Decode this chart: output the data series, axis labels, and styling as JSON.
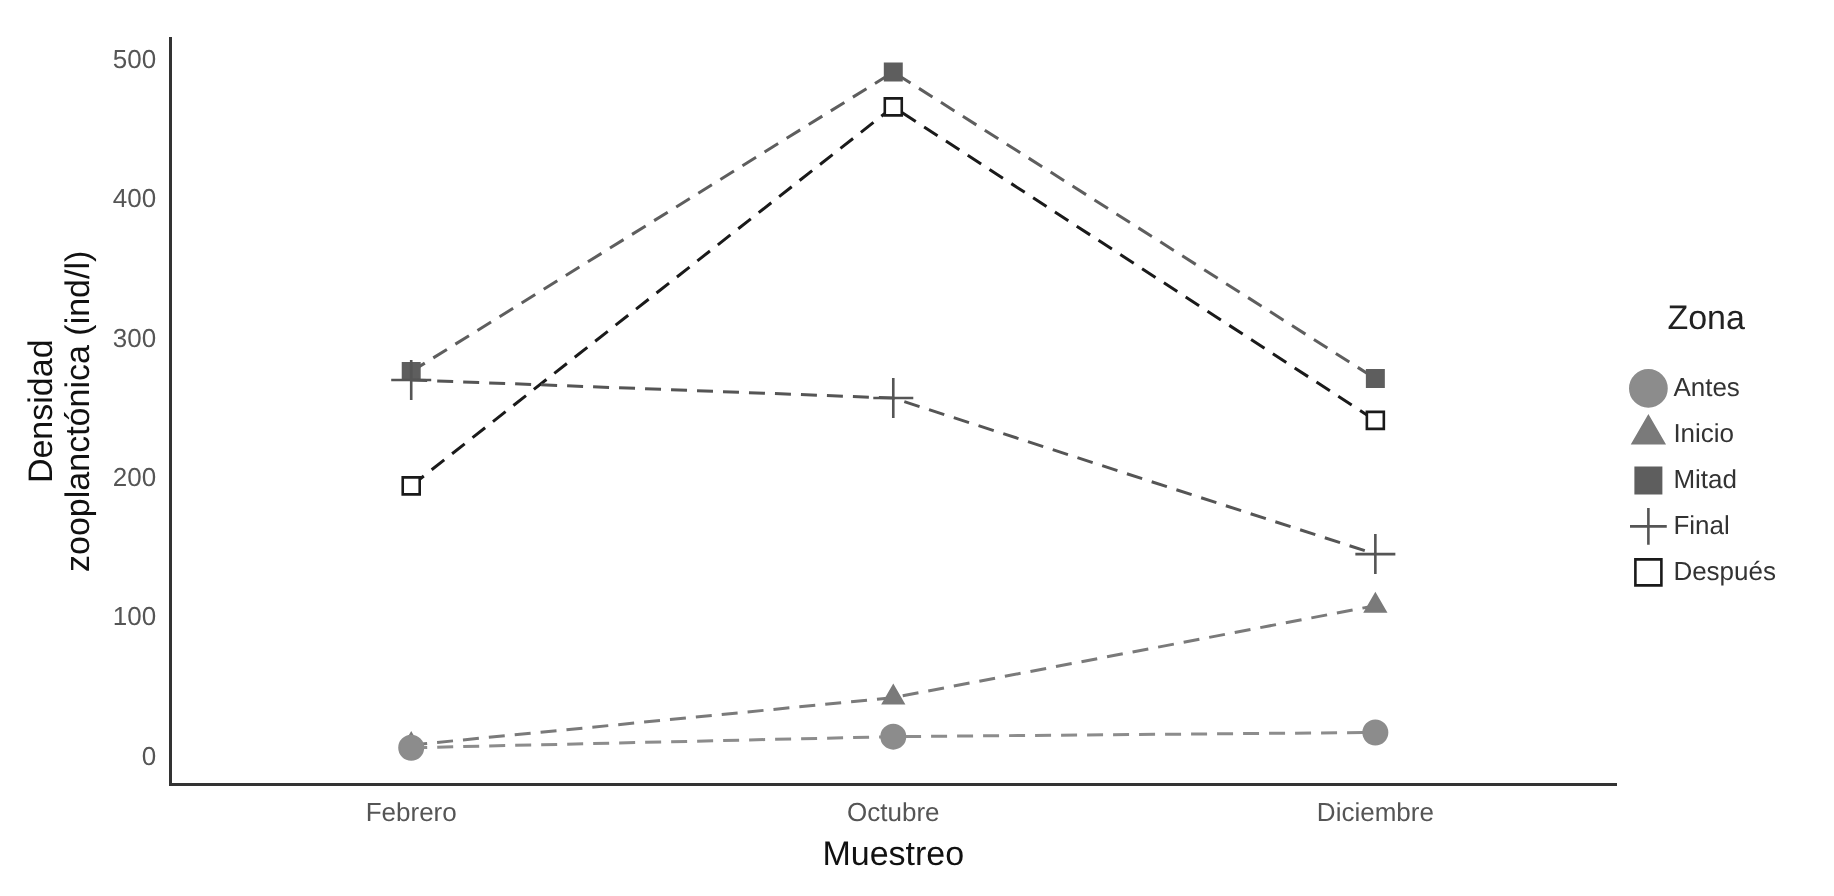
{
  "chart_data": {
    "type": "line",
    "xlabel": "Muestreo",
    "ylabel": "Densidad\nzooplanctónica (ind/l)",
    "legend_title": "Zona",
    "legend": "right",
    "categories": [
      "Febrero",
      "Octubre",
      "Diciembre"
    ],
    "ylim": [
      -19,
      516
    ],
    "yticks": [
      0,
      100,
      200,
      300,
      400,
      500
    ],
    "grid": false,
    "line_style": "dashed",
    "series": [
      {
        "name": "Antes",
        "color": "#8c8c8c",
        "marker": "circle",
        "values": [
          7,
          15,
          18
        ]
      },
      {
        "name": "Inicio",
        "color": "#7a7a7a",
        "marker": "triangle",
        "values": [
          9,
          43,
          109
        ]
      },
      {
        "name": "Mitad",
        "color": "#5e5e5e",
        "marker": "square",
        "values": [
          277,
          492,
          272
        ]
      },
      {
        "name": "Final",
        "color": "#555555",
        "marker": "cross",
        "values": [
          271,
          258,
          146
        ]
      },
      {
        "name": "Después",
        "color": "#1a1a1a",
        "marker": "square",
        "values": [
          195,
          467,
          242
        ]
      }
    ]
  }
}
